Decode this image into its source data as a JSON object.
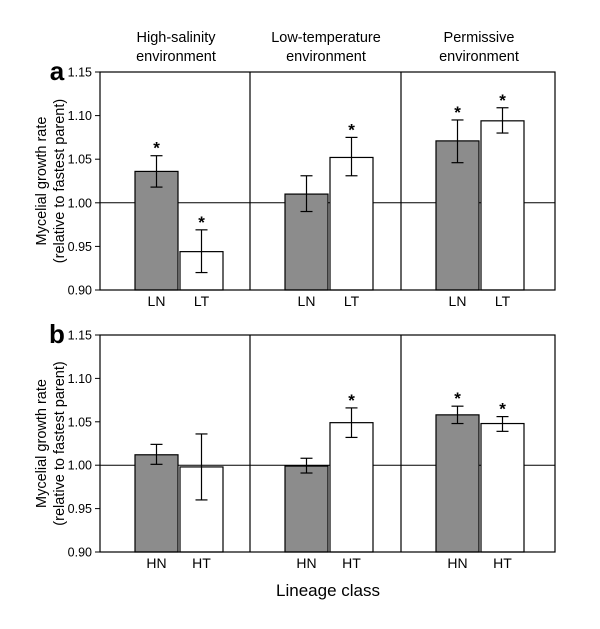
{
  "environments": [
    "High-salinity environment",
    "Low-temperature environment",
    "Permissive environment"
  ],
  "environment_lines": [
    [
      "High-salinity",
      "environment"
    ],
    [
      "Low-temperature",
      "environment"
    ],
    [
      "Permissive",
      "environment"
    ]
  ],
  "ylabel_lines": [
    "Mycelial growth rate",
    "(relative to fastest parent)"
  ],
  "xlabel": "Lineage class",
  "colors": {
    "filled_bar": "#8c8c8c",
    "open_bar": "#ffffff",
    "stroke": "#000000"
  },
  "chart_data": [
    {
      "type": "bar",
      "panel": "a",
      "categories": [
        "LN",
        "LT"
      ],
      "ylim": [
        0.9,
        1.15
      ],
      "yticks": [
        "0.90",
        "0.95",
        "1.00",
        "1.05",
        "1.10",
        "1.15"
      ],
      "reference_line": 1.0,
      "ylabel": "Mycelial growth rate (relative to fastest parent)",
      "groups": [
        {
          "environment": "High-salinity environment",
          "bars": [
            {
              "category": "LN",
              "value": 1.036,
              "err_low": 1.018,
              "err_high": 1.054,
              "significant": true
            },
            {
              "category": "LT",
              "value": 0.944,
              "err_low": 0.92,
              "err_high": 0.969,
              "significant": true
            }
          ]
        },
        {
          "environment": "Low-temperature environment",
          "bars": [
            {
              "category": "LN",
              "value": 1.01,
              "err_low": 0.99,
              "err_high": 1.031,
              "significant": false
            },
            {
              "category": "LT",
              "value": 1.052,
              "err_low": 1.031,
              "err_high": 1.075,
              "significant": true
            }
          ]
        },
        {
          "environment": "Permissive environment",
          "bars": [
            {
              "category": "LN",
              "value": 1.071,
              "err_low": 1.046,
              "err_high": 1.095,
              "significant": true
            },
            {
              "category": "LT",
              "value": 1.094,
              "err_low": 1.08,
              "err_high": 1.109,
              "significant": true
            }
          ]
        }
      ]
    },
    {
      "type": "bar",
      "panel": "b",
      "categories": [
        "HN",
        "HT"
      ],
      "ylim": [
        0.9,
        1.15
      ],
      "yticks": [
        "0.90",
        "0.95",
        "1.00",
        "1.05",
        "1.10",
        "1.15"
      ],
      "reference_line": 1.0,
      "ylabel": "Mycelial growth rate (relative to fastest parent)",
      "xlabel": "Lineage class",
      "groups": [
        {
          "environment": "High-salinity environment",
          "bars": [
            {
              "category": "HN",
              "value": 1.012,
              "err_low": 1.001,
              "err_high": 1.024,
              "significant": false
            },
            {
              "category": "HT",
              "value": 0.998,
              "err_low": 0.96,
              "err_high": 1.036,
              "significant": false
            }
          ]
        },
        {
          "environment": "Low-temperature environment",
          "bars": [
            {
              "category": "HN",
              "value": 0.999,
              "err_low": 0.991,
              "err_high": 1.008,
              "significant": false
            },
            {
              "category": "HT",
              "value": 1.049,
              "err_low": 1.032,
              "err_high": 1.066,
              "significant": true
            }
          ]
        },
        {
          "environment": "Permissive environment",
          "bars": [
            {
              "category": "HN",
              "value": 1.058,
              "err_low": 1.048,
              "err_high": 1.068,
              "significant": true
            },
            {
              "category": "HT",
              "value": 1.048,
              "err_low": 1.039,
              "err_high": 1.056,
              "significant": true
            }
          ]
        }
      ]
    }
  ]
}
